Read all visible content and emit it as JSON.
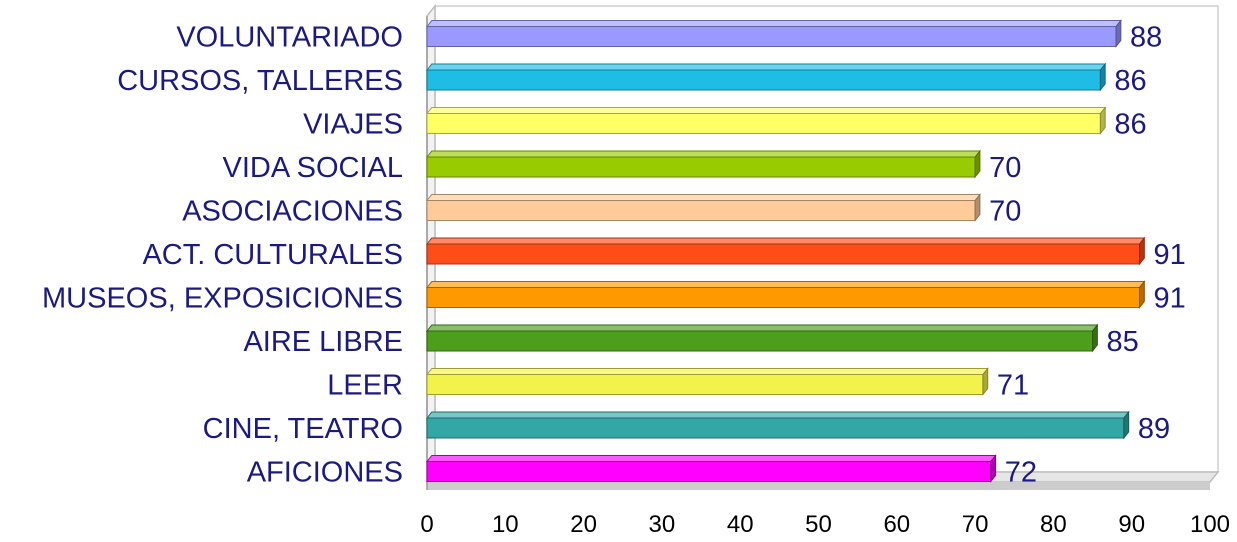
{
  "chart_data": {
    "type": "bar",
    "orientation": "horizontal",
    "categories": [
      "VOLUNTARIADO",
      "CURSOS, TALLERES",
      "VIAJES",
      "VIDA SOCIAL",
      "ASOCIACIONES",
      "ACT. CULTURALES",
      "MUSEOS, EXPOSICIONES",
      "AIRE LIBRE",
      "LEER",
      "CINE, TEATRO",
      "AFICIONES"
    ],
    "values": [
      88,
      86,
      86,
      70,
      70,
      91,
      91,
      85,
      71,
      89,
      72
    ],
    "colors": [
      "#9999ff",
      "#1fbde6",
      "#ffff66",
      "#99cc00",
      "#ffcc99",
      "#ff4d1a",
      "#ff9900",
      "#4d9e1a",
      "#f2f24d",
      "#33a6a6",
      "#ff00ff"
    ],
    "xlim": [
      0,
      100
    ],
    "xticks": [
      0,
      10,
      20,
      30,
      40,
      50,
      60,
      70,
      80,
      90,
      100
    ],
    "title": "",
    "xlabel": "",
    "ylabel": "",
    "grid": false,
    "legend": "none",
    "style": "3d"
  }
}
